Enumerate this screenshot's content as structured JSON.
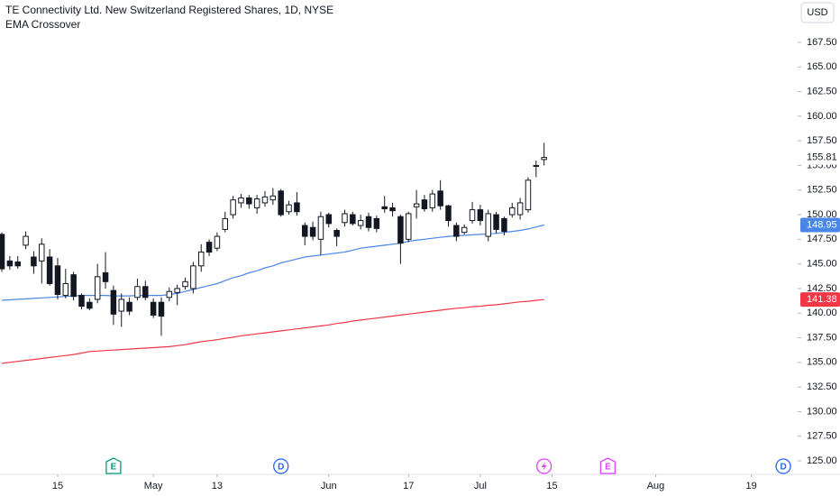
{
  "chart_data": {
    "type": "candlestick",
    "title": "TE Connectivity Ltd. New Switzerland Registered Shares, 1D, NYSE",
    "subtitle": "EMA Crossover",
    "currency": "USD",
    "x": [
      -7,
      -6,
      -5,
      -4,
      -3,
      -2,
      -1,
      0,
      1,
      2,
      3,
      4,
      5,
      6,
      7,
      8,
      9,
      10,
      11,
      12,
      13,
      14,
      15,
      16,
      17,
      18,
      19,
      20,
      21,
      22,
      23,
      24,
      25,
      26,
      27,
      28,
      29,
      30,
      31,
      32,
      33,
      34,
      35,
      36,
      37,
      38,
      39,
      40,
      41,
      42,
      43,
      44,
      45,
      46,
      47,
      48,
      49,
      50,
      51,
      52,
      53,
      54,
      55,
      56,
      57,
      58,
      59,
      60,
      61
    ],
    "open": [
      148.0,
      145.3,
      145.2,
      146.9,
      145.7,
      145.3,
      145.7,
      144.8,
      141.8,
      143.9,
      141.8,
      141.1,
      141.4,
      144.1,
      142.3,
      140.2,
      141.1,
      141.6,
      142.7,
      141.1,
      141.1,
      141.6,
      142.1,
      142.7,
      142.5,
      144.8,
      147.2,
      146.6,
      148.5,
      150.0,
      151.2,
      151.7,
      150.7,
      151.2,
      151.5,
      152.4,
      150.3,
      151.2,
      148.9,
      148.7,
      147.5,
      150.0,
      148.4,
      149.2,
      150.0,
      148.9,
      149.8,
      149.6,
      150.8,
      150.7,
      149.8,
      147.5,
      150.8,
      151.5,
      150.7,
      152.4,
      150.9,
      148.9,
      148.2,
      149.4,
      150.5,
      147.8,
      150.0,
      149.6,
      150.0,
      150.0,
      150.5,
      154.9,
      155.6
    ],
    "high": [
      148.2,
      145.8,
      145.8,
      148.3,
      146.3,
      147.6,
      146.5,
      145.6,
      144.5,
      144.2,
      142.0,
      141.5,
      145.0,
      146.2,
      142.8,
      142.0,
      141.6,
      143.5,
      143.3,
      141.5,
      141.6,
      142.6,
      142.9,
      143.6,
      145.2,
      147.0,
      147.5,
      148.2,
      150.3,
      151.9,
      152.1,
      152.0,
      152.0,
      152.4,
      152.7,
      152.6,
      151.4,
      152.3,
      149.2,
      149.3,
      150.3,
      150.2,
      148.6,
      150.5,
      150.3,
      150.0,
      150.2,
      149.9,
      151.9,
      151.2,
      150.0,
      150.3,
      152.5,
      152.0,
      152.5,
      153.5,
      151.0,
      149.2,
      149.0,
      151.3,
      151.0,
      150.5,
      150.3,
      149.8,
      151.2,
      151.7,
      153.8,
      155.5,
      157.3
    ],
    "low": [
      144.2,
      144.4,
      144.5,
      146.5,
      144.0,
      143.0,
      142.8,
      141.4,
      141.5,
      141.3,
      140.4,
      140.3,
      141.0,
      142.5,
      138.8,
      138.6,
      139.8,
      141.3,
      141.3,
      139.5,
      137.7,
      141.2,
      140.8,
      142.4,
      142.0,
      144.2,
      145.8,
      146.3,
      148.2,
      149.6,
      150.7,
      150.6,
      150.1,
      150.8,
      151.0,
      149.8,
      150.0,
      149.9,
      146.9,
      147.4,
      145.9,
      148.7,
      146.8,
      148.8,
      148.9,
      148.5,
      148.3,
      148.2,
      150.2,
      149.8,
      145.0,
      147.2,
      149.6,
      150.3,
      150.3,
      150.5,
      148.8,
      147.3,
      148.0,
      149.1,
      148.9,
      147.3,
      148.1,
      147.9,
      149.7,
      149.5,
      150.2,
      153.8,
      155.0
    ],
    "close": [
      144.5,
      144.8,
      144.8,
      147.8,
      144.8,
      147.0,
      143.0,
      141.9,
      143.0,
      141.7,
      140.7,
      140.5,
      143.7,
      143.2,
      139.9,
      141.4,
      140.2,
      142.7,
      141.6,
      139.8,
      139.7,
      142.2,
      142.5,
      143.2,
      144.8,
      146.2,
      146.2,
      147.8,
      149.6,
      151.5,
      151.7,
      151.1,
      151.6,
      151.8,
      151.9,
      150.0,
      151.0,
      150.3,
      147.8,
      147.8,
      149.8,
      149.1,
      147.8,
      150.1,
      149.1,
      149.4,
      148.7,
      148.6,
      150.6,
      150.4,
      147.1,
      150.1,
      151.1,
      150.6,
      152.1,
      150.9,
      149.4,
      147.8,
      148.7,
      150.5,
      149.4,
      150.1,
      148.5,
      148.3,
      150.7,
      151.2,
      153.5,
      155.0,
      155.81
    ],
    "up_color": "#ffffff",
    "down_color": "#131722",
    "series": [
      {
        "color": "#4a86e8",
        "values": [
          141.3,
          141.35,
          141.4,
          141.45,
          141.5,
          141.55,
          141.6,
          141.65,
          141.7,
          141.75,
          141.8,
          141.8,
          141.8,
          141.8,
          141.75,
          141.75,
          141.75,
          141.8,
          141.8,
          141.8,
          141.8,
          141.9,
          142.0,
          142.2,
          142.4,
          142.6,
          142.8,
          143.0,
          143.3,
          143.6,
          143.8,
          144.1,
          144.3,
          144.6,
          144.8,
          145.1,
          145.3,
          145.5,
          145.7,
          145.8,
          145.9,
          146.0,
          146.1,
          146.2,
          146.4,
          146.6,
          146.7,
          146.8,
          146.9,
          147.0,
          147.1,
          147.3,
          147.4,
          147.5,
          147.6,
          147.7,
          147.8,
          147.85,
          147.9,
          147.95,
          148.0,
          148.05,
          148.1,
          148.2,
          148.3,
          148.4,
          148.55,
          148.75,
          148.95
        ]
      },
      {
        "color": "#f23645",
        "values": [
          134.9,
          135.0,
          135.1,
          135.2,
          135.3,
          135.4,
          135.5,
          135.6,
          135.7,
          135.8,
          135.95,
          136.1,
          136.15,
          136.2,
          136.25,
          136.3,
          136.35,
          136.4,
          136.45,
          136.5,
          136.55,
          136.6,
          136.7,
          136.8,
          136.95,
          137.1,
          137.2,
          137.3,
          137.45,
          137.55,
          137.7,
          137.8,
          137.9,
          138.0,
          138.1,
          138.2,
          138.3,
          138.4,
          138.5,
          138.6,
          138.7,
          138.8,
          138.95,
          139.05,
          139.2,
          139.3,
          139.4,
          139.5,
          139.6,
          139.7,
          139.8,
          139.9,
          140.0,
          140.1,
          140.2,
          140.3,
          140.4,
          140.5,
          140.55,
          140.65,
          140.7,
          140.8,
          140.85,
          140.95,
          141.05,
          141.15,
          141.2,
          141.3,
          141.38
        ]
      }
    ],
    "xlim": [
      -7.23,
      92.8
    ],
    "xticks": [
      {
        "value": 0,
        "label": "15"
      },
      {
        "value": 12,
        "label": "May"
      },
      {
        "value": 20,
        "label": "13"
      },
      {
        "value": 34,
        "label": "Jun"
      },
      {
        "value": 44,
        "label": "17"
      },
      {
        "value": 53,
        "label": "Jul"
      },
      {
        "value": 62,
        "label": "15"
      },
      {
        "value": 75,
        "label": "Aug"
      },
      {
        "value": 87,
        "label": "19"
      }
    ],
    "ylim": [
      123.72,
      171.8
    ],
    "yticks": [
      {
        "value": 125,
        "label": "125.00"
      },
      {
        "value": 127.5,
        "label": "127.50"
      },
      {
        "value": 130,
        "label": "130.00"
      },
      {
        "value": 132.5,
        "label": "132.50"
      },
      {
        "value": 135,
        "label": "135.00"
      },
      {
        "value": 137.5,
        "label": "137.50"
      },
      {
        "value": 140,
        "label": "140.00"
      },
      {
        "value": 142.5,
        "label": "142.50"
      },
      {
        "value": 145,
        "label": "145.00"
      },
      {
        "value": 147.5,
        "label": "147.50"
      },
      {
        "value": 150,
        "label": "150.00"
      },
      {
        "value": 152.5,
        "label": "152.50"
      },
      {
        "value": 155,
        "label": "155.00"
      },
      {
        "value": 157.5,
        "label": "157.50"
      },
      {
        "value": 160,
        "label": "160.00"
      },
      {
        "value": 162.5,
        "label": "162.50"
      },
      {
        "value": 165,
        "label": "165.00"
      },
      {
        "value": 167.5,
        "label": "167.50"
      }
    ],
    "grid": false,
    "events": [
      {
        "x": 7,
        "label": "E",
        "color": "#089981"
      },
      {
        "x": 28,
        "label": "D",
        "color": "#2962ff"
      },
      {
        "x": 61,
        "icon": "flash",
        "color": "#e040fb"
      },
      {
        "x": 69,
        "label": "E",
        "color": "#e040fb"
      },
      {
        "x": 91,
        "label": "D",
        "color": "#2962ff"
      }
    ]
  }
}
